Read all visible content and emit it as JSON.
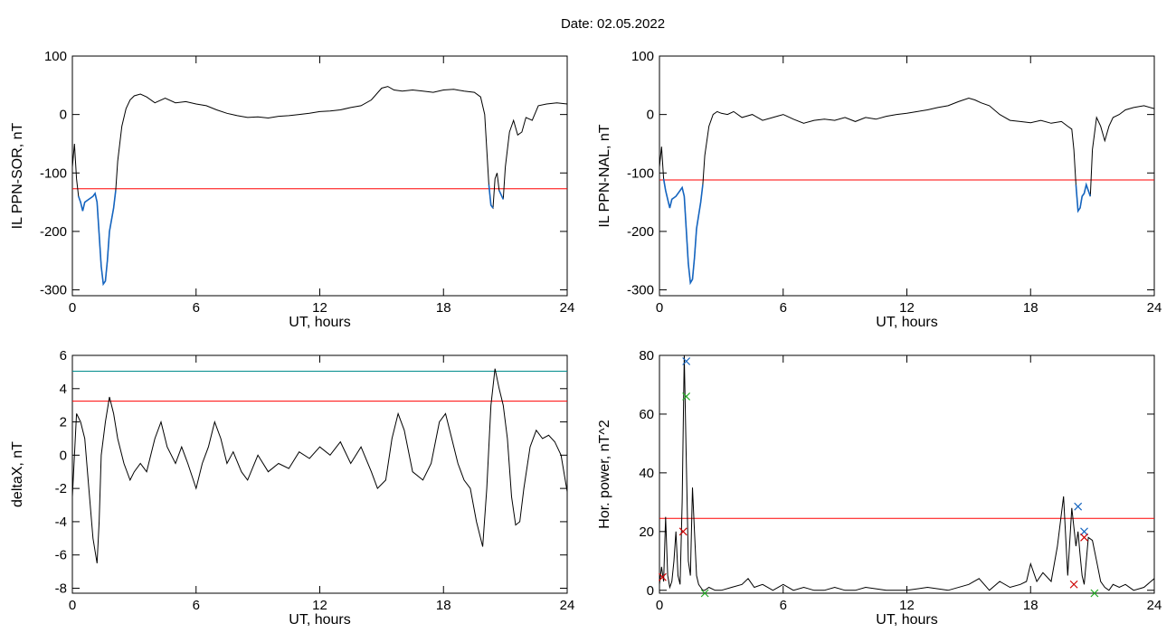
{
  "header": {
    "date_label": "Date:  02.05.2022"
  },
  "colors": {
    "trace": "#000000",
    "threshold_red": "#ff0000",
    "threshold_teal": "#008b8b",
    "highlight_blue": "#1565c0",
    "marker_red": "#cc0000",
    "marker_green": "#22aa22",
    "marker_blue": "#1565c0"
  },
  "chart_data": [
    {
      "id": "il_ppn_sor",
      "type": "line",
      "xlabel": "UT, hours",
      "ylabel": "IL PPN-SOR, nT",
      "xlim": [
        0,
        24
      ],
      "ylim": [
        -310,
        100
      ],
      "xticks": [
        0,
        6,
        12,
        18,
        24
      ],
      "yticks": [
        100,
        0,
        -100,
        -200,
        -300
      ],
      "series": [
        {
          "x": [
            0,
            0.1,
            0.2,
            0.3,
            0.4,
            0.5,
            0.6,
            0.8,
            1.0,
            1.1,
            1.2,
            1.4,
            1.5,
            1.6,
            1.7,
            1.8,
            2.0,
            2.1,
            2.2,
            2.4,
            2.6,
            2.8,
            3.0,
            3.3,
            3.6,
            4.0,
            4.5,
            5.0,
            5.5,
            6.0,
            6.5,
            7.0,
            7.5,
            8.0,
            8.5,
            9.0,
            9.5,
            10.0,
            10.5,
            11.0,
            11.5,
            12.0,
            12.5,
            13.0,
            13.5,
            14.0,
            14.5,
            15.0,
            15.3,
            15.6,
            16.0,
            16.5,
            17.0,
            17.5,
            18.0,
            18.5,
            19.0,
            19.5,
            19.8,
            20.0,
            20.1,
            20.2,
            20.3,
            20.4,
            20.5,
            20.6,
            20.7,
            20.9,
            21.0,
            21.2,
            21.4,
            21.6,
            21.8,
            22.0,
            22.3,
            22.6,
            23.0,
            23.5,
            24.0
          ],
          "y": [
            -90,
            -50,
            -110,
            -140,
            -150,
            -165,
            -150,
            -145,
            -140,
            -135,
            -150,
            -260,
            -290,
            -285,
            -250,
            -200,
            -160,
            -130,
            -80,
            -20,
            10,
            25,
            32,
            35,
            30,
            20,
            28,
            20,
            22,
            18,
            15,
            8,
            2,
            -2,
            -5,
            -4,
            -6,
            -3,
            -2,
            0,
            2,
            5,
            6,
            8,
            12,
            15,
            25,
            45,
            48,
            42,
            40,
            42,
            40,
            38,
            42,
            43,
            40,
            38,
            30,
            0,
            -60,
            -120,
            -155,
            -160,
            -110,
            -100,
            -130,
            -145,
            -90,
            -30,
            -10,
            -35,
            -30,
            -5,
            -10,
            15,
            18,
            20,
            18
          ]
        }
      ],
      "thresholds": [
        {
          "value": -127,
          "color": "#ff0000"
        }
      ]
    },
    {
      "id": "il_ppn_nal",
      "type": "line",
      "xlabel": "UT, hours",
      "ylabel": "IL PPN-NAL, nT",
      "xlim": [
        0,
        24
      ],
      "ylim": [
        -310,
        100
      ],
      "xticks": [
        0,
        6,
        12,
        18,
        24
      ],
      "yticks": [
        100,
        0,
        -100,
        -200,
        -300
      ],
      "series": [
        {
          "x": [
            0,
            0.1,
            0.2,
            0.3,
            0.4,
            0.5,
            0.6,
            0.8,
            1.0,
            1.1,
            1.2,
            1.4,
            1.5,
            1.6,
            1.7,
            1.8,
            2.0,
            2.1,
            2.2,
            2.4,
            2.6,
            2.8,
            3.0,
            3.3,
            3.6,
            4.0,
            4.5,
            5.0,
            5.5,
            6.0,
            6.5,
            7.0,
            7.5,
            8.0,
            8.5,
            9.0,
            9.5,
            10.0,
            10.5,
            11.0,
            11.5,
            12.0,
            12.5,
            13.0,
            13.5,
            14.0,
            14.5,
            15.0,
            15.3,
            15.6,
            16.0,
            16.5,
            17.0,
            17.5,
            18.0,
            18.5,
            19.0,
            19.5,
            19.8,
            20.0,
            20.1,
            20.2,
            20.3,
            20.4,
            20.5,
            20.6,
            20.7,
            20.9,
            21.0,
            21.2,
            21.4,
            21.6,
            21.8,
            22.0,
            22.3,
            22.6,
            23.0,
            23.5,
            24.0
          ],
          "y": [
            -90,
            -55,
            -110,
            -130,
            -145,
            -160,
            -145,
            -140,
            -130,
            -125,
            -140,
            -255,
            -288,
            -282,
            -245,
            -195,
            -150,
            -120,
            -70,
            -20,
            0,
            5,
            2,
            0,
            5,
            -5,
            0,
            -10,
            -5,
            0,
            -8,
            -15,
            -10,
            -8,
            -10,
            -5,
            -12,
            -5,
            -8,
            -3,
            0,
            2,
            5,
            8,
            12,
            15,
            22,
            28,
            25,
            20,
            15,
            0,
            -10,
            -12,
            -14,
            -10,
            -15,
            -12,
            -20,
            -25,
            -60,
            -120,
            -165,
            -160,
            -140,
            -135,
            -120,
            -140,
            -60,
            -5,
            -20,
            -45,
            -20,
            -5,
            0,
            8,
            12,
            15,
            10
          ]
        }
      ],
      "thresholds": [
        {
          "value": -112,
          "color": "#ff0000"
        }
      ]
    },
    {
      "id": "delta_x",
      "type": "line",
      "xlabel": "UT, hours",
      "ylabel": "deltaX, nT",
      "xlim": [
        0,
        24
      ],
      "ylim": [
        -8.3,
        6
      ],
      "xticks": [
        0,
        6,
        12,
        18,
        24
      ],
      "yticks": [
        6,
        4,
        2,
        0,
        -2,
        -4,
        -6,
        -8
      ],
      "series": [
        {
          "x": [
            0,
            0.2,
            0.4,
            0.6,
            0.8,
            1.0,
            1.2,
            1.3,
            1.4,
            1.6,
            1.8,
            2.0,
            2.2,
            2.5,
            2.8,
            3.0,
            3.3,
            3.6,
            4.0,
            4.3,
            4.6,
            5.0,
            5.3,
            5.6,
            6.0,
            6.3,
            6.6,
            6.9,
            7.2,
            7.5,
            7.8,
            8.2,
            8.5,
            9.0,
            9.5,
            10.0,
            10.5,
            11.0,
            11.5,
            12.0,
            12.5,
            13.0,
            13.5,
            14.0,
            14.5,
            14.8,
            15.2,
            15.5,
            15.8,
            16.1,
            16.5,
            17.0,
            17.4,
            17.8,
            18.1,
            18.4,
            18.7,
            19.0,
            19.3,
            19.6,
            19.9,
            20.1,
            20.3,
            20.5,
            20.7,
            20.9,
            21.1,
            21.3,
            21.5,
            21.7,
            21.9,
            22.2,
            22.5,
            22.8,
            23.1,
            23.4,
            23.7,
            24.0
          ],
          "y": [
            -2.5,
            2.5,
            2.0,
            1.0,
            -2.0,
            -5.0,
            -6.5,
            -4.0,
            0.0,
            2.0,
            3.5,
            2.5,
            1.0,
            -0.5,
            -1.5,
            -1.0,
            -0.5,
            -1.0,
            1.0,
            2.0,
            0.5,
            -0.5,
            0.5,
            -0.5,
            -2.0,
            -0.5,
            0.5,
            2.0,
            1.0,
            -0.5,
            0.2,
            -1.0,
            -1.5,
            0.0,
            -1.0,
            -0.5,
            -0.8,
            0.2,
            -0.2,
            0.5,
            0.0,
            0.8,
            -0.5,
            0.5,
            -1.0,
            -2.0,
            -1.5,
            1.0,
            2.5,
            1.5,
            -1.0,
            -1.5,
            -0.5,
            2.0,
            2.5,
            1.0,
            -0.5,
            -1.5,
            -2.0,
            -4.0,
            -5.5,
            -2.0,
            3.0,
            5.2,
            4.0,
            3.0,
            1.0,
            -2.5,
            -4.2,
            -4.0,
            -2.0,
            0.5,
            1.5,
            1.0,
            1.2,
            0.8,
            0.0,
            -2.2
          ]
        }
      ],
      "thresholds": [
        {
          "value": 5.05,
          "color": "#008b8b"
        },
        {
          "value": 3.25,
          "color": "#ff0000"
        }
      ]
    },
    {
      "id": "hor_power",
      "type": "line",
      "xlabel": "UT, hours",
      "ylabel": "Hor. power, nT^2",
      "xlim": [
        0,
        24
      ],
      "ylim": [
        -1,
        80
      ],
      "xticks": [
        0,
        6,
        12,
        18,
        24
      ],
      "yticks": [
        80,
        60,
        40,
        20,
        0
      ],
      "series": [
        {
          "x": [
            0,
            0.1,
            0.2,
            0.3,
            0.4,
            0.5,
            0.6,
            0.7,
            0.8,
            0.9,
            1.0,
            1.1,
            1.2,
            1.3,
            1.4,
            1.5,
            1.6,
            1.7,
            1.8,
            1.9,
            2.0,
            2.1,
            2.2,
            2.4,
            2.7,
            3.0,
            3.5,
            4.0,
            4.3,
            4.6,
            5.0,
            5.5,
            6.0,
            6.5,
            7.0,
            7.5,
            8.0,
            8.5,
            9.0,
            9.5,
            10.0,
            11.0,
            12.0,
            13.0,
            14.0,
            15.0,
            15.5,
            16.0,
            16.5,
            17.0,
            17.5,
            17.8,
            18.0,
            18.3,
            18.6,
            19.0,
            19.3,
            19.6,
            19.8,
            20.0,
            20.2,
            20.3,
            20.4,
            20.5,
            20.6,
            20.8,
            21.0,
            21.2,
            21.4,
            21.6,
            21.8,
            22.0,
            22.3,
            22.6,
            23.0,
            23.5,
            24.0
          ],
          "y": [
            2,
            8,
            3,
            25,
            5,
            1,
            3,
            10,
            20,
            5,
            2,
            30,
            80,
            45,
            10,
            5,
            35,
            20,
            5,
            2,
            1,
            0,
            0,
            1,
            0,
            0,
            1,
            2,
            4,
            1,
            2,
            0,
            2,
            0,
            1,
            0,
            0,
            1,
            0,
            0,
            1,
            0,
            0,
            1,
            0,
            2,
            4,
            0,
            3,
            1,
            2,
            3,
            9,
            3,
            6,
            3,
            15,
            32,
            5,
            28,
            15,
            20,
            12,
            5,
            2,
            18,
            17,
            10,
            3,
            1,
            0,
            2,
            1,
            2,
            0,
            1,
            4
          ]
        }
      ],
      "thresholds": [
        {
          "value": 24.5,
          "color": "#ff0000"
        }
      ],
      "markers": [
        {
          "x": 0.15,
          "y": 4.5,
          "color": "#cc0000"
        },
        {
          "x": 1.15,
          "y": 20,
          "color": "#cc0000"
        },
        {
          "x": 1.3,
          "y": 66,
          "color": "#22aa22"
        },
        {
          "x": 1.3,
          "y": 78,
          "color": "#1565c0"
        },
        {
          "x": 2.2,
          "y": -1,
          "color": "#22aa22"
        },
        {
          "x": 20.1,
          "y": 2,
          "color": "#cc0000"
        },
        {
          "x": 20.3,
          "y": 28.5,
          "color": "#1565c0"
        },
        {
          "x": 20.6,
          "y": 20,
          "color": "#1565c0"
        },
        {
          "x": 20.6,
          "y": 18,
          "color": "#cc0000"
        },
        {
          "x": 21.1,
          "y": -1,
          "color": "#22aa22"
        }
      ]
    }
  ]
}
